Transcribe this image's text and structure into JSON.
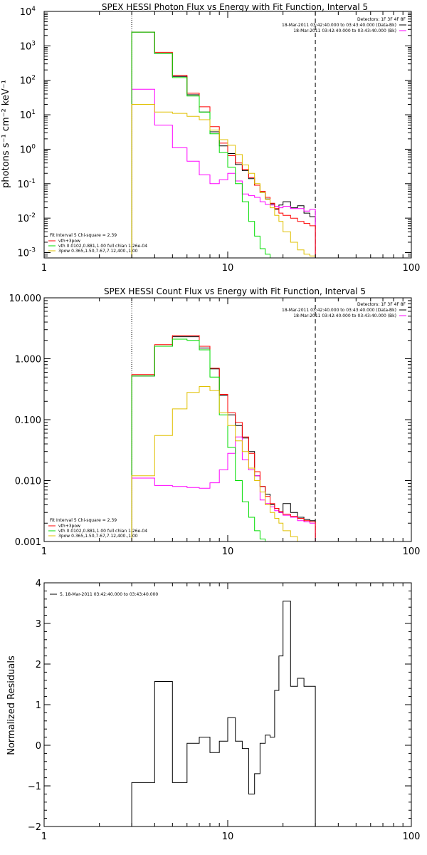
{
  "panels": [
    {
      "title": "SPEX HESSI Photon Flux vs Energy with Fit Function, Interval 5",
      "ylabel": "photons s⁻¹ cm⁻² keV⁻¹",
      "xlim": [
        1,
        100
      ],
      "xticks": [
        {
          "v": 1,
          "l": "1"
        },
        {
          "v": 10,
          "l": "10"
        },
        {
          "v": 100,
          "l": "100"
        }
      ],
      "ylog": true,
      "ylim": [
        0.0007,
        10000
      ],
      "yticks": [
        {
          "v": 0.001,
          "base": "10",
          "exp": "-3"
        },
        {
          "v": 0.01,
          "base": "10",
          "exp": "-2"
        },
        {
          "v": 0.1,
          "base": "10",
          "exp": "-1"
        },
        {
          "v": 1,
          "base": "10",
          "exp": "0"
        },
        {
          "v": 10,
          "base": "10",
          "exp": "1"
        },
        {
          "v": 100,
          "base": "10",
          "exp": "2"
        },
        {
          "v": 1000,
          "base": "10",
          "exp": "3"
        },
        {
          "v": 10000,
          "base": "10",
          "exp": "4"
        }
      ],
      "vlines": [
        {
          "x": 3,
          "style": "dotted"
        },
        {
          "x": 30,
          "style": "dashed"
        }
      ],
      "legend_tr": [
        {
          "text": "Detectors: 1F 3F 4F 8F",
          "color": null
        },
        {
          "text": "18-Mar-2011 03:42:40.000 to 03:43:40.000 (Data-Bk)",
          "color": "#000000"
        },
        {
          "text": "18-Mar-2011 03:42:40.000 to 03:43:40.000 (Bk)",
          "color": "#ff00ff"
        }
      ],
      "legend_bl": [
        {
          "text": "Fit Interval 5   Chi-square = 2.39",
          "color": null
        },
        {
          "text": "vth+3pow",
          "color": "#ff0000"
        },
        {
          "text": "vth 0.0102,0.881,1.00  full chian 1.26e-04",
          "color": "#00dd00"
        },
        {
          "text": "3pow 0.365,1.50,7.67,7.12,400.,1.00",
          "color": "#e0c000"
        }
      ]
    },
    {
      "title": "SPEX HESSI Count Flux vs Energy with Fit Function, Interval 5",
      "ylabel": "",
      "xlim": [
        1,
        100
      ],
      "xticks": [
        {
          "v": 1,
          "l": "1"
        },
        {
          "v": 10,
          "l": "10"
        },
        {
          "v": 100,
          "l": "100"
        }
      ],
      "ylog": true,
      "ylim": [
        0.001,
        10
      ],
      "yticks": [
        {
          "v": 0.001,
          "l": "0.001"
        },
        {
          "v": 0.01,
          "l": "0.010"
        },
        {
          "v": 0.1,
          "l": "0.100"
        },
        {
          "v": 1,
          "l": "1.000"
        },
        {
          "v": 10,
          "l": "10.000"
        }
      ],
      "vlines": [
        {
          "x": 3,
          "style": "dotted"
        },
        {
          "x": 30,
          "style": "dashed"
        }
      ],
      "legend_tr": [
        {
          "text": "Detectors: 1F 3F 4F 8F",
          "color": null
        },
        {
          "text": "18-Mar-2011 03:42:40.000 to 03:43:40.000 (Data-Bk)",
          "color": "#000000"
        },
        {
          "text": "18-Mar-2011 03:42:40.000 to 03:43:40.000 (Bk)",
          "color": "#ff00ff"
        }
      ],
      "legend_bl": [
        {
          "text": "Fit Interval 5   Chi-square = 2.39",
          "color": null
        },
        {
          "text": "vth+3pow",
          "color": "#ff0000"
        },
        {
          "text": "vth 0.0102,0.881,1.00  full chian 1.26e-04",
          "color": "#00dd00"
        },
        {
          "text": "3pow 0.365,1.50,7.67,7.12,400.,1.00",
          "color": "#e0c000"
        }
      ]
    },
    {
      "title": "",
      "ylabel": "Normalized Residuals",
      "xlim": [
        1,
        100
      ],
      "xticks": [
        {
          "v": 1,
          "l": "1"
        },
        {
          "v": 10,
          "l": "10"
        },
        {
          "v": 100,
          "l": "100"
        }
      ],
      "ylog": false,
      "ylim": [
        -2,
        4
      ],
      "yticks": [
        {
          "v": -2,
          "l": "−2"
        },
        {
          "v": -1,
          "l": "−1"
        },
        {
          "v": 0,
          "l": "0"
        },
        {
          "v": 1,
          "l": "1"
        },
        {
          "v": 2,
          "l": "2"
        },
        {
          "v": 3,
          "l": "3"
        },
        {
          "v": 4,
          "l": "4"
        }
      ],
      "vlines": [],
      "legend_tr": [],
      "legend_bl": [],
      "legend_tl": [
        {
          "text": "5, 18-Mar-2011 03:42:40.000 to 03:43:40.000",
          "color": "#000000"
        }
      ]
    }
  ],
  "chart_data": [
    {
      "type": "line",
      "title": "SPEX HESSI Photon Flux vs Energy with Fit Function, Interval 5",
      "ylabel": "photons s⁻¹ cm⁻² keV⁻¹",
      "xscale": "log",
      "yscale": "log",
      "xlim": [
        1,
        100
      ],
      "ylim": [
        0.0007,
        10000
      ],
      "edges": [
        3,
        4,
        5,
        6,
        7,
        8,
        9,
        10,
        11,
        12,
        13,
        14,
        15,
        16,
        17,
        18,
        19,
        20,
        22,
        24,
        26,
        28,
        30
      ],
      "series": [
        {
          "name": "Data-Bk",
          "color": "#000000",
          "values": [
            2500,
            600,
            130,
            38,
            12,
            3.2,
            1.25,
            0.75,
            0.36,
            0.24,
            0.14,
            0.09,
            0.055,
            0.036,
            0.026,
            0.018,
            0.024,
            0.03,
            0.02,
            0.023,
            0.014,
            0.011
          ]
        },
        {
          "name": "Bk",
          "color": "#ff00ff",
          "values": [
            55,
            5,
            1.1,
            0.45,
            0.18,
            0.1,
            0.13,
            0.2,
            0.12,
            0.05,
            0.045,
            0.04,
            0.03,
            0.025,
            0.024,
            0.022,
            0.02,
            0.022,
            0.019,
            0.019,
            0.016,
            0.018
          ]
        },
        {
          "name": "vth+3pow",
          "color": "#ff0000",
          "values": [
            2500,
            650,
            140,
            42,
            17,
            4.5,
            1.5,
            0.65,
            0.4,
            0.26,
            0.15,
            0.09,
            0.06,
            0.04,
            0.027,
            0.019,
            0.014,
            0.012,
            0.01,
            0.008,
            0.007,
            0.006
          ]
        },
        {
          "name": "vth",
          "color": "#00dd00",
          "values": [
            2500,
            600,
            120,
            35,
            12,
            2.8,
            0.8,
            0.3,
            0.1,
            0.03,
            0.008,
            0.003,
            0.0013,
            0.0009,
            0.0007,
            0.0007,
            0.0007,
            0.0007,
            0.0007,
            0.0007,
            0.0007,
            0.0007
          ]
        },
        {
          "name": "3pow",
          "color": "#e0c000",
          "values": [
            20,
            12,
            11,
            9,
            7.2,
            3.6,
            1.9,
            1.3,
            0.7,
            0.35,
            0.2,
            0.1,
            0.055,
            0.035,
            0.02,
            0.012,
            0.008,
            0.004,
            0.002,
            0.0012,
            0.0009,
            0.0008
          ]
        }
      ]
    },
    {
      "type": "line",
      "title": "SPEX HESSI Count Flux vs Energy with Fit Function, Interval 5",
      "xscale": "log",
      "yscale": "log",
      "xlim": [
        1,
        100
      ],
      "ylim": [
        0.001,
        10
      ],
      "edges": [
        3,
        4,
        5,
        6,
        7,
        8,
        9,
        10,
        11,
        12,
        13,
        14,
        15,
        16,
        17,
        18,
        19,
        20,
        22,
        24,
        26,
        28,
        30
      ],
      "series": [
        {
          "name": "Data-Bk",
          "color": "#000000",
          "values": [
            0.52,
            1.6,
            2.3,
            2.3,
            1.5,
            0.68,
            0.25,
            0.12,
            0.08,
            0.05,
            0.03,
            0.012,
            0.008,
            0.006,
            0.004,
            0.0035,
            0.003,
            0.0042,
            0.003,
            0.0025,
            0.0023,
            0.0022
          ]
        },
        {
          "name": "Bk",
          "color": "#ff00ff",
          "values": [
            0.011,
            0.0083,
            0.008,
            0.0077,
            0.0075,
            0.0092,
            0.015,
            0.028,
            0.052,
            0.022,
            0.015,
            0.012,
            0.0048,
            0.0042,
            0.0037,
            0.0032,
            0.003,
            0.0027,
            0.0025,
            0.0022,
            0.0021,
            0.002
          ]
        },
        {
          "name": "vth+3pow",
          "color": "#ff0000",
          "values": [
            0.55,
            1.7,
            2.4,
            2.4,
            1.6,
            0.7,
            0.26,
            0.13,
            0.09,
            0.052,
            0.028,
            0.014,
            0.008,
            0.0055,
            0.0042,
            0.0035,
            0.0031,
            0.0028,
            0.0026,
            0.0024,
            0.0022,
            0.0021
          ]
        },
        {
          "name": "vth",
          "color": "#00dd00",
          "values": [
            0.52,
            1.6,
            2.1,
            2.0,
            1.4,
            0.5,
            0.12,
            0.035,
            0.01,
            0.0045,
            0.0025,
            0.0015,
            0.0011,
            0.001,
            0.001,
            0.001,
            0.001,
            0.001,
            0.001,
            0.001,
            0.001,
            0.001
          ]
        },
        {
          "name": "3pow",
          "color": "#e0c000",
          "values": [
            0.012,
            0.055,
            0.15,
            0.28,
            0.35,
            0.3,
            0.13,
            0.08,
            0.045,
            0.03,
            0.016,
            0.01,
            0.0065,
            0.004,
            0.003,
            0.0024,
            0.002,
            0.0015,
            0.0012,
            0.001,
            0.001,
            0.001
          ]
        }
      ]
    },
    {
      "type": "line",
      "ylabel": "Normalized Residuals",
      "xscale": "log",
      "yscale": "linear",
      "xlim": [
        1,
        100
      ],
      "ylim": [
        -2,
        4
      ],
      "edges": [
        3,
        4,
        5,
        6,
        7,
        8,
        9,
        10,
        11,
        12,
        13,
        14,
        15,
        16,
        17,
        18,
        19,
        20,
        22,
        24,
        26,
        28,
        30
      ],
      "series": [
        {
          "name": "5, 18-Mar-2011 03:42:40.000 to 03:43:40.000",
          "color": "#000000",
          "values": [
            -0.92,
            1.57,
            -0.92,
            0.05,
            0.2,
            -0.18,
            0.1,
            0.68,
            0.1,
            -0.08,
            -1.2,
            -0.7,
            0.05,
            0.25,
            0.2,
            1.35,
            2.2,
            3.55,
            1.45,
            1.65,
            1.45,
            1.45
          ]
        }
      ]
    }
  ]
}
